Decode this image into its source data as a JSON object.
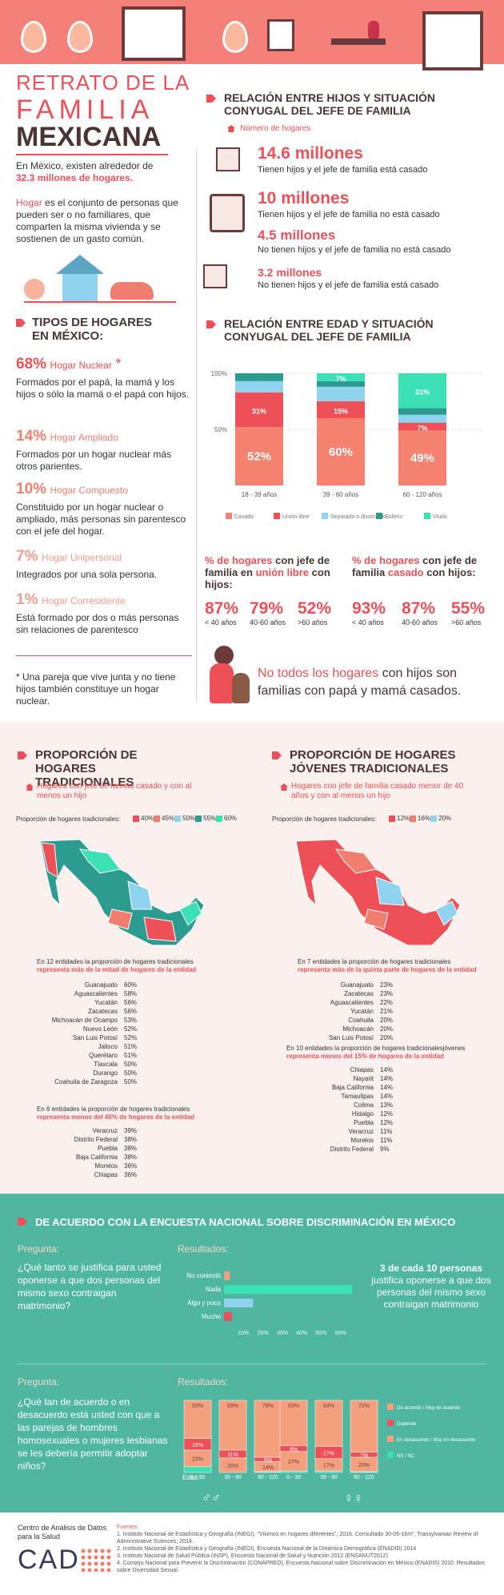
{
  "title": {
    "l1": "RETRATO DE LA",
    "l2": "FAMILIA",
    "l3": "MEXICANA"
  },
  "intro": {
    "p1a": "En México, existen alrededor de",
    "p1b": "32.3 millones de hogares.",
    "hogar_word": "Hogar",
    "p2": "es el conjunto de personas que pueden ser o no familiares, que comparten la misma vivienda y se sostienen de un gasto común."
  },
  "tipos": {
    "title1": "TIPOS DE HOGARES",
    "title2": "EN MÉXICO:",
    "items": [
      {
        "pct": "68%",
        "name": "Hogar Nuclear",
        "star": "*",
        "desc": "Formados por el papá, la mamá y los hijos o sólo la mamá o el papá con hijos."
      },
      {
        "pct": "14%",
        "name": "Hogar Ampliado",
        "star": "",
        "desc": "Formados por un hogar nuclear más otros parientes."
      },
      {
        "pct": "10%",
        "name": "Hogar Compuesto",
        "star": "",
        "desc": "Constituido por un hogar nuclear o ampliado, más personas sin parentesco con el jefe del hogar."
      },
      {
        "pct": "7%",
        "name": "Hogar Unipersonal",
        "star": "",
        "desc": "Integrados por una sola persona."
      },
      {
        "pct": "1%",
        "name": "Hogar Corresidente",
        "star": "",
        "desc": "Está formado por dos o más personas sin relaciones de parentesco"
      }
    ],
    "note": "* Una pareja que vive junta y no tiene hijos también constituye un hogar nuclear."
  },
  "rel1": {
    "title": "RELACIÓN ENTRE HIJOS Y SITUACIÓN CONYUGAL DEL JEFE DE FAMILIA",
    "legend": "Número de hogares",
    "items": [
      {
        "num": "14.6 millones",
        "desc": "Tienen hijos y el jefe de familia está casado"
      },
      {
        "num": "10 millones",
        "desc": "Tienen hijos y el jefe de familia no está casado"
      },
      {
        "num": "4.5 millones",
        "desc": "No tienen hijos y el jefe de familia no está casado"
      },
      {
        "num": "3.2 millones",
        "desc": "No tienen hijos y el jefe de familia está casado"
      }
    ]
  },
  "rel2": {
    "title": "RELACIÓN ENTRE EDAD Y SITUACIÓN CONYUGAL DEL JEFE DE FAMILIA"
  },
  "chart_data": [
    {
      "type": "bar",
      "stacked": true,
      "categories": [
        "18 - 39 años",
        "39 - 60 años",
        "60 - 120 años"
      ],
      "ytick_labels": [
        "100%",
        "50%"
      ],
      "series": [
        {
          "name": "Casado",
          "color": "#f4826f",
          "values": [
            52,
            60,
            49
          ]
        },
        {
          "name": "Unión libre",
          "color": "#ef4f56",
          "values": [
            31,
            15,
            7
          ]
        },
        {
          "name": "Separado o divorciado",
          "color": "#8fd3ef",
          "values": [
            10,
            13,
            7
          ]
        },
        {
          "name": "Soltero",
          "color": "#2b9c8f",
          "values": [
            7,
            5,
            6
          ]
        },
        {
          "name": "Viudo",
          "color": "#3be0b4",
          "values": [
            0,
            7,
            31
          ]
        }
      ],
      "data_labels": {
        "Casado": [
          "52%",
          "60%",
          "49%"
        ],
        "Unión libre": [
          "31%",
          "15%",
          "7%"
        ],
        "Viudo": [
          "",
          "7%",
          "31%"
        ]
      }
    },
    {
      "type": "bar",
      "orientation": "horizontal",
      "categories": [
        "No contestó",
        "Nada",
        "Algo y poco",
        "Mucho"
      ],
      "values": [
        3,
        66,
        15,
        4
      ],
      "colors": [
        "#f4a07f",
        "#3be0b4",
        "#8fd3ef",
        "#ef4f56"
      ],
      "xticks": [
        "10%",
        "20%",
        "30%",
        "40%",
        "50%",
        "60%"
      ]
    },
    {
      "type": "bar",
      "stacked": true,
      "groups": [
        "Hombres",
        "Mujeres"
      ],
      "categories": [
        "0 - 39",
        "39 - 60",
        "60 - 120"
      ],
      "series": [
        {
          "name": "De acuerdo / Muy de acuerdo",
          "color": "#f4a07f",
          "values": [
            [
              53,
              69,
              79
            ],
            [
              63,
              64,
              72
            ]
          ]
        },
        {
          "name": "Depende",
          "color": "#ef4f56",
          "values": [
            [
              16,
              11,
              6
            ],
            [
              8,
              17,
              7
            ]
          ]
        },
        {
          "name": "En desacuerdo / Muy en desacuerdo",
          "color": "#f4a07f",
          "values": [
            [
              23,
              20,
              14
            ],
            [
              27,
              17,
              20
            ]
          ]
        },
        {
          "name": "NS / NC",
          "color": "#3be0b4",
          "values": [
            [
              8,
              0,
              1
            ],
            [
              2,
              2,
              1
            ]
          ]
        }
      ],
      "data_labels": [
        [
          "53%",
          "69%",
          "79%",
          "16%",
          "11%",
          "6%",
          "23%",
          "20%",
          "14%"
        ],
        [
          "63%",
          "64%",
          "72%",
          "8%",
          "17%",
          "7%",
          "27%",
          "17%",
          "20%"
        ]
      ]
    }
  ],
  "chart_legend": [
    "Casado",
    "Unión libre",
    "Separado o divorciado",
    "Soltero",
    "Viudo"
  ],
  "union": {
    "title_a": "% de hogares",
    "title_b": "con jefe de familia en",
    "title_c": "unión libre",
    "title_d": "con hijos:",
    "vals": [
      {
        "v": "87%",
        "l": "< 40 años"
      },
      {
        "v": "79%",
        "l": "40-60 años"
      },
      {
        "v": "52%",
        "l": ">60 años"
      }
    ]
  },
  "casado": {
    "title_a": "% de hogares",
    "title_b": "con jefe de familia",
    "title_c": "casado",
    "title_d": "con hijos:",
    "vals": [
      {
        "v": "93%",
        "l": "< 40 años"
      },
      {
        "v": "87%",
        "l": "40-60 años"
      },
      {
        "v": "55%",
        "l": ">60 años"
      }
    ]
  },
  "nofam": {
    "a": "No todos los hogares",
    "b": "con hijos son familias con papá y mamá casados."
  },
  "map1": {
    "title": "PROPORCIÓN DE HOGARES TRADICIONALES",
    "sub": "Hogares con jefe de familia casado y con al menos un hijo",
    "scale_label": "Proporción de hogares tradicionales:",
    "scale": [
      {
        "v": "40%",
        "c": "#ef4f56"
      },
      {
        "v": "45%",
        "c": "#f07d6e"
      },
      {
        "v": "50%",
        "c": "#8fd3ef"
      },
      {
        "v": "55%",
        "c": "#2b9c8f"
      },
      {
        "v": "60%",
        "c": "#3be0b4"
      }
    ],
    "top_title": "En 12 entidades la proporción de hogares tradicionales",
    "top_sub": "representa más de la mitad de hogares de la entidad",
    "top": [
      [
        "Guanajuato",
        "60%"
      ],
      [
        "Aguascalientes",
        "58%"
      ],
      [
        "Yucatán",
        "56%"
      ],
      [
        "Zacatecas",
        "56%"
      ],
      [
        "Michoacán de Ocampo",
        "53%"
      ],
      [
        "Nuevo León",
        "52%"
      ],
      [
        "San Luis Potosí",
        "52%"
      ],
      [
        "Jalisco",
        "51%"
      ],
      [
        "Querétaro",
        "51%"
      ],
      [
        "Tlaxcala",
        "50%"
      ],
      [
        "Durango",
        "50%"
      ],
      [
        "Coahuila de Zaragoza",
        "50%"
      ]
    ],
    "bot_title": "En 6 entidades la proporción de hogares tradicionales",
    "bot_sub": "representa menos del 40% de hogares de la entidad",
    "bot": [
      [
        "Veracruz",
        "39%"
      ],
      [
        "Distrito Federal",
        "38%"
      ],
      [
        "Puebla",
        "38%"
      ],
      [
        "Baja California",
        "38%"
      ],
      [
        "Morelos",
        "36%"
      ],
      [
        "Chiapas",
        "36%"
      ]
    ]
  },
  "map2": {
    "title1": "PROPORCIÓN DE HOGARES",
    "title2": "JÓVENES TRADICIONALES",
    "sub": "Hogares con jefe de familia casado menor de 40 años y con al menos un hijo",
    "scale_label": "Proporción de hogares tradicionales:",
    "scale": [
      {
        "v": "12%",
        "c": "#ef4f56"
      },
      {
        "v": "16%",
        "c": "#f07d6e"
      },
      {
        "v": "20%",
        "c": "#8fd3ef"
      }
    ],
    "top_title": "En 7 entidades la proporción de hogares tradicionales",
    "top_sub": "representa más de la quinta parte de hogares de la entidad",
    "top": [
      [
        "Guanajuato",
        "23%"
      ],
      [
        "Zacatecas",
        "23%"
      ],
      [
        "Aguascalientes",
        "22%"
      ],
      [
        "Yucatán",
        "21%"
      ],
      [
        "Coahuila",
        "20%"
      ],
      [
        "Michoacán",
        "20%"
      ],
      [
        "San Luis Potosí",
        "20%"
      ]
    ],
    "bot_title": "En 10 entidades la proporción de hogares tradicionalesjóvenes",
    "bot_sub": "representa menos del 15% de hogares de la entidad",
    "bot": [
      [
        "Chiapas",
        "14%"
      ],
      [
        "Nayarit",
        "14%"
      ],
      [
        "Baja California",
        "14%"
      ],
      [
        "Tamaulipas",
        "14%"
      ],
      [
        "Colima",
        "13%"
      ],
      [
        "Hidalgo",
        "12%"
      ],
      [
        "Puebla",
        "12%"
      ],
      [
        "Veracruz",
        "11%"
      ],
      [
        "Morelos",
        "11%"
      ],
      [
        "Distrito Federal",
        "9%"
      ]
    ]
  },
  "disc": {
    "title": "DE ACUERDO CON LA ENCUESTA NACIONAL SOBRE DISCRIMINACIÓN EN MÉXICO",
    "pregunta": "Pregunta:",
    "resultados": "Resultados:",
    "q1": "¿Qué tanto se justifica para usted oponerse a que dos personas del mismo sexo contraigan matrimonio?",
    "a1a": "3 de cada 10 personas",
    "a1b": "justifica oponerse a que dos personas del mismo sexo contraigan matrimonio",
    "q2": "¿Qué tan de acuerdo o en desacuerdo está usted con que a las parejas de hombres homosexuales o mujeres lesbianas se les debería permitir adoptar niños?",
    "edad": "Edad:",
    "legend2": [
      "De acuerdo / Muy de acuerdo",
      "Depende",
      "En desacuerdo / Muy en desacuerdo",
      "NS / NC"
    ]
  },
  "footer": {
    "org1": "Centro de Análisis de Datos",
    "org2": "para la Salud",
    "logo": "CAD",
    "fuentes_label": "Fuentes:",
    "fuentes": [
      "1. Instituto Nacional de Estadística y Geografía (INEGI), \"Vivimos en hogares diferentes\", 2016. Consultado 30-05-16m\", Transylvanian Review of Administrative Sciences, 2014.",
      "2. Instituto Nacional de Estadística y Geografía (INEGI), Encuesta Nacional de la Dinámica Demográfica (ENADID) 2014",
      "3. Instituto Nacional de Salud Pública (INSP), Encuesta Nacional de Salud y Nutrición 2012 (ENSANUT2012)",
      "4. Consejo Nacional para Prevenir la Discriminación (CONAPRED), Encuesta Nacional sobre Discriminación en México (ENADIS) 2010. Resultados sobre Diversidad Sexual."
    ]
  }
}
